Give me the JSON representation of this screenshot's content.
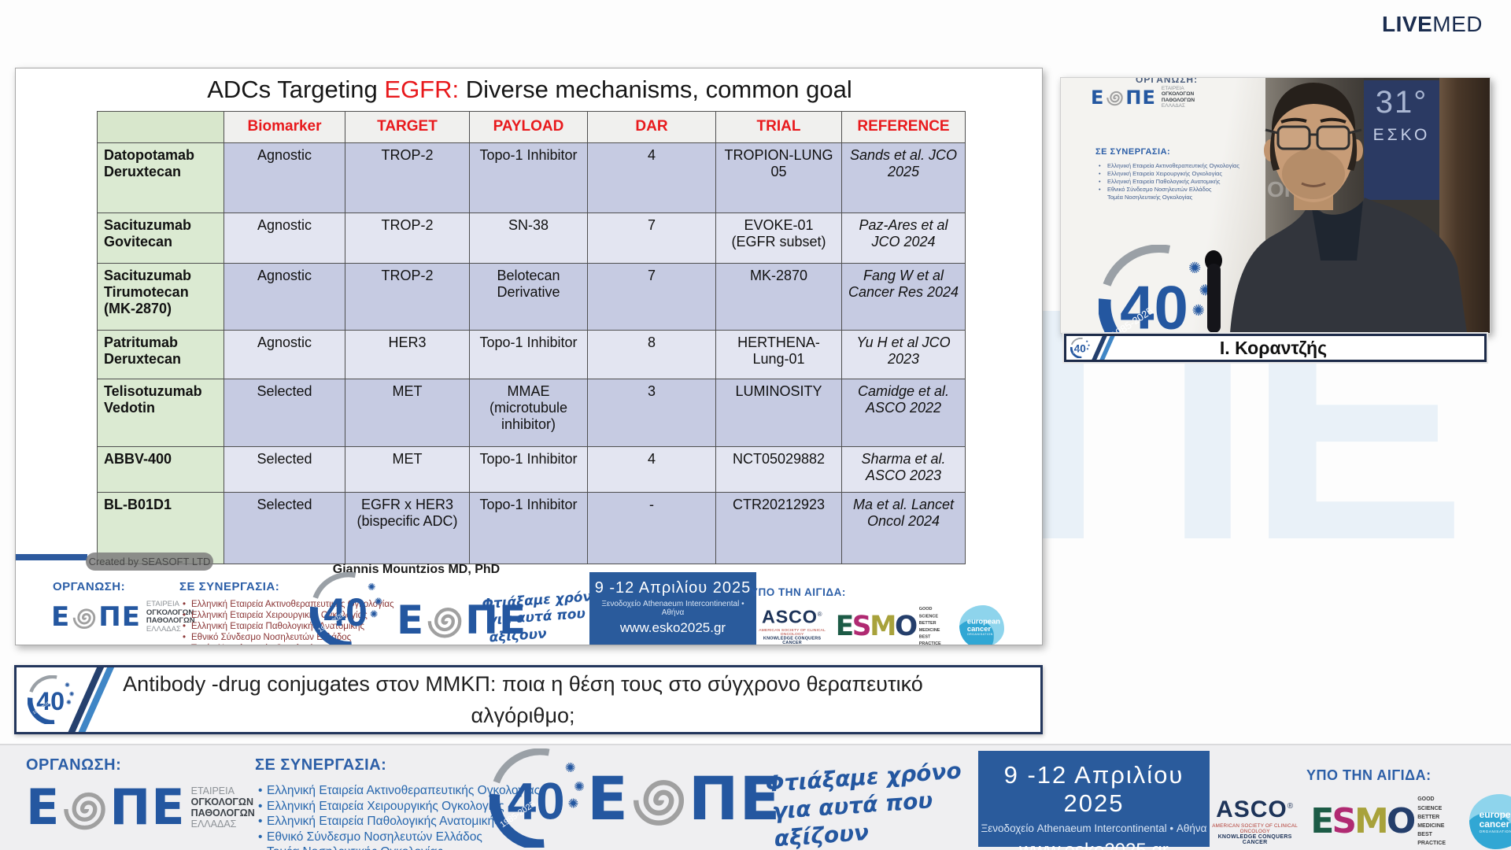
{
  "livemed": {
    "live": "LIVE",
    "med": "MED"
  },
  "slide": {
    "title": {
      "prefix": "ADCs Targeting ",
      "highlight": "EGFR:",
      "suffix": " Diverse mechanisms, common goal"
    },
    "table": {
      "headers": [
        "",
        "Biomarker",
        "TARGET",
        "PAYLOAD",
        "DAR",
        "TRIAL",
        "REFERENCE"
      ],
      "rows": [
        [
          "Datopotamab Deruxtecan",
          "Agnostic",
          "TROP-2",
          "Topo-1 Inhibitor",
          "4",
          "TROPION-LUNG 05",
          "Sands et al. JCO 2025"
        ],
        [
          "Sacituzumab Govitecan",
          "Agnostic",
          "TROP-2",
          "SN-38",
          "7",
          "EVOKE-01 (EGFR subset)",
          "Paz-Ares et al JCO 2024"
        ],
        [
          "Sacituzumab Tirumotecan (MK-2870)",
          "Agnostic",
          "TROP-2",
          "Belotecan Derivative",
          "7",
          "MK-2870",
          "Fang W et al Cancer Res 2024"
        ],
        [
          "Patritumab Deruxtecan",
          "Agnostic",
          "HER3",
          "Topo-1 Inhibitor",
          "8",
          "HERTHENA-Lung-01",
          "Yu H et al JCO 2023"
        ],
        [
          "Telisotuzumab Vedotin",
          "Selected",
          "MET",
          "MMAE (microtubule inhibitor)",
          "3",
          "LUMINOSITY",
          "Camidge et al. ASCO 2022"
        ],
        [
          "ABBV-400",
          "Selected",
          "MET",
          "Topo-1 Inhibitor",
          "4",
          "NCT05029882",
          "Sharma et al. ASCO 2023"
        ],
        [
          "BL-B01D1",
          "Selected",
          "EGFR x HER3 (bispecific ADC)",
          "Topo-1 Inhibitor",
          "-",
          "CTR20212923",
          "Ma et al. Lancet Oncol 2024"
        ]
      ]
    },
    "attribution": "Giannis Mountzios MD, PhD",
    "watermark_pill": "Created by SEASOFT LTD"
  },
  "branding": {
    "organizer_label": "ΟΡΓΑΝΩΣΗ:",
    "partners_label": "ΣΕ ΣΥΝΕΡΓΑΣΙΑ:",
    "auspices_label": "ΥΠΟ ΤΗΝ ΑΙΓΙΔΑ:",
    "eope": {
      "letter_e": "Ε",
      "letters_pe": "ΠΕ",
      "side_lines": [
        "ΕΤΑΙΡΕΙΑ",
        "ΟΓΚΟΛΟΓΩΝ",
        "ΠΑΘΟΛΟΓΩΝ",
        "ΕΛΛΑΔΑΣ"
      ]
    },
    "partners": [
      "Ελληνική Εταιρεία Ακτινοθεραπευτικής Ογκολογίας",
      "Ελληνική Εταιρεία Χειρουργικής Ογκολογίας",
      "Ελληνική Εταιρεία Παθολογικής Ανατομικής",
      "Εθνικό Σύνδεσμο Νοσηλευτών Ελλάδος"
    ],
    "partners_cont": "Τομέα Νοσηλευτικής Ογκολογίας",
    "forty": {
      "number": "40",
      "years": "1985-2025",
      "slogan_line1": "Φτιάξαμε χρόνο",
      "slogan_line2": "για αυτά που αξίζουν"
    },
    "conference": {
      "dates": "9 -12 Απριλίου 2025",
      "venue": "Ξενοδοχείο Athenaeum Intercontinental • Αθήνα",
      "url": "www.esko2025.gr"
    },
    "asco": {
      "name": "ASCO",
      "reg": "®",
      "line1": "AMERICAN SOCIETY OF CLINICAL ONCOLOGY",
      "line2": "KNOWLEDGE CONQUERS CANCER"
    },
    "esmo": {
      "letters": [
        "E",
        "S",
        "M",
        "O"
      ],
      "taglines": [
        "GOOD SCIENCE",
        "BETTER MEDICINE",
        "BEST PRACTICE"
      ]
    },
    "eco": {
      "line1": "european",
      "line2": "cancer",
      "line3": "ORGANISATION"
    }
  },
  "video": {
    "panel_number": "31°",
    "panel_name": "ΕΣΚΟ",
    "speaker_name": "Ι. Κοραντζής",
    "backdrop_letters": [
      "Ε",
      "Σ",
      "ΟΓΚ"
    ]
  },
  "footer_title": "Antibody -drug conjugates στον ΜΜΚΠ: ποια η θέση τους στο σύγχρονο θεραπευτικό αλγόριθμο;",
  "colors": {
    "accent_red": "#e8191c",
    "brand_blue": "#2b5ea7",
    "logo_blue": "#2457a0",
    "navy": "#1b2d4f",
    "date_box_bg": "#2a5b9c"
  }
}
